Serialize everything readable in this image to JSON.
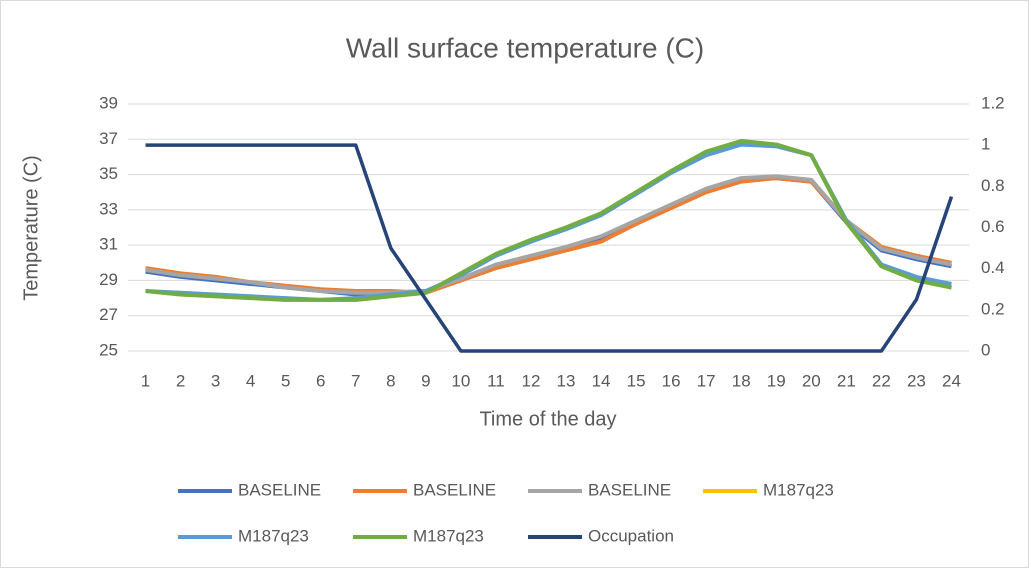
{
  "chart_data": {
    "type": "line",
    "title": "Wall surface temperature (C)",
    "x_label": "Time of the day",
    "y_label": "Temperature (C)",
    "categories": [
      1,
      2,
      3,
      4,
      5,
      6,
      7,
      8,
      9,
      10,
      11,
      12,
      13,
      14,
      15,
      16,
      17,
      18,
      19,
      20,
      21,
      22,
      23,
      24
    ],
    "ylim": [
      25,
      39
    ],
    "yticks": [
      25,
      27,
      29,
      31,
      33,
      35,
      37,
      39
    ],
    "y2lim": [
      0,
      1.2
    ],
    "y2ticks": [
      0,
      0.2,
      0.4,
      0.6,
      0.8,
      1,
      1.2
    ],
    "grid": true,
    "legend": "bottom",
    "series": [
      {
        "name": "BASELINE",
        "color": "#4472c4",
        "values": [
          29.5,
          29.2,
          29.0,
          28.8,
          28.6,
          28.4,
          28.2,
          28.3,
          28.4,
          29.1,
          29.8,
          30.3,
          30.8,
          31.4,
          32.3,
          33.2,
          34.1,
          34.7,
          34.8,
          34.6,
          32.3,
          30.7,
          30.2,
          29.8
        ]
      },
      {
        "name": "BASELINE",
        "color": "#ed7d31",
        "values": [
          29.7,
          29.4,
          29.2,
          28.9,
          28.7,
          28.5,
          28.4,
          28.4,
          28.3,
          29.0,
          29.7,
          30.2,
          30.7,
          31.2,
          32.2,
          33.1,
          34.0,
          34.6,
          34.8,
          34.6,
          32.4,
          30.9,
          30.4,
          30.0
        ]
      },
      {
        "name": "BASELINE",
        "color": "#a5a5a5",
        "values": [
          29.6,
          29.3,
          29.1,
          28.9,
          28.6,
          28.4,
          28.3,
          28.3,
          28.4,
          29.1,
          29.9,
          30.4,
          30.9,
          31.5,
          32.4,
          33.3,
          34.2,
          34.8,
          34.9,
          34.7,
          32.4,
          30.8,
          30.3,
          29.9
        ]
      },
      {
        "name": "M187q23",
        "color": "#ffc000",
        "values": [
          28.4,
          28.2,
          28.1,
          28.0,
          27.9,
          27.9,
          27.9,
          28.1,
          28.3,
          29.4,
          30.5,
          31.3,
          32.0,
          32.8,
          34.0,
          35.2,
          36.3,
          36.9,
          36.7,
          36.1,
          32.3,
          29.8,
          29.0,
          28.6
        ]
      },
      {
        "name": "M187q23",
        "color": "#5b9bd5",
        "values": [
          28.4,
          28.3,
          28.2,
          28.1,
          28.0,
          27.9,
          28.0,
          28.2,
          28.4,
          29.3,
          30.4,
          31.2,
          31.9,
          32.7,
          33.9,
          35.1,
          36.1,
          36.7,
          36.6,
          36.1,
          32.4,
          29.9,
          29.2,
          28.8
        ]
      },
      {
        "name": "M187q23",
        "color": "#70ad47",
        "values": [
          28.4,
          28.2,
          28.1,
          28.0,
          27.9,
          27.9,
          27.9,
          28.1,
          28.3,
          29.4,
          30.5,
          31.3,
          32.0,
          32.8,
          34.0,
          35.2,
          36.3,
          36.9,
          36.7,
          36.1,
          32.3,
          29.8,
          29.0,
          28.6
        ]
      },
      {
        "name": "Occupation",
        "color": "#264478",
        "axis": "y2",
        "values": [
          1,
          1,
          1,
          1,
          1,
          1,
          1,
          0.5,
          0.25,
          0,
          0,
          0,
          0,
          0,
          0,
          0,
          0,
          0,
          0,
          0,
          0,
          0,
          0.25,
          0.75
        ]
      }
    ]
  }
}
